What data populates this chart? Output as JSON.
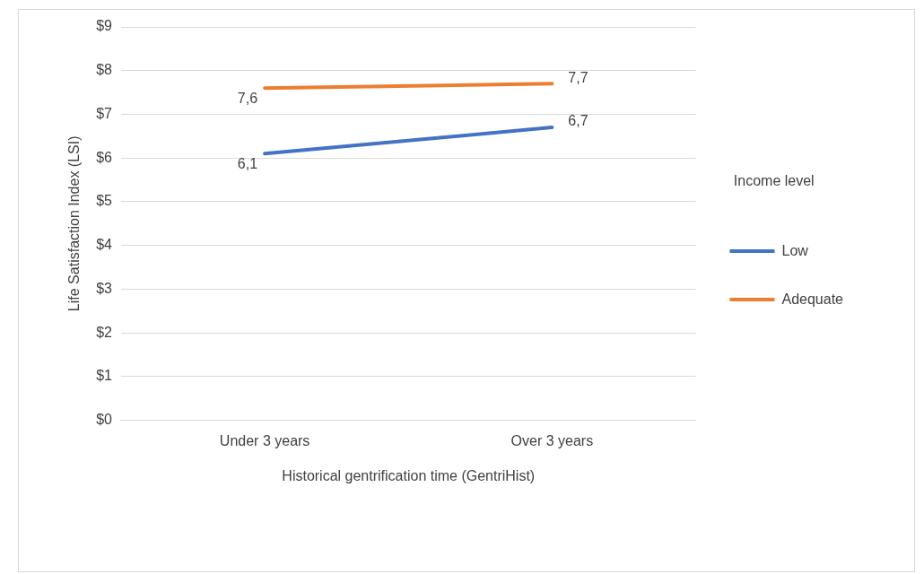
{
  "chart_data": {
    "type": "line",
    "xlabel": "Historical gentrification time (GentriHist)",
    "ylabel": "Life Satisfaction Index (LSI)",
    "legend_title": "Income level",
    "categories": [
      "Under 3 years",
      "Over 3 years"
    ],
    "series": [
      {
        "name": "Low",
        "color": "#4472c4",
        "values": [
          6.1,
          6.7
        ],
        "value_labels": [
          "6,1",
          "6,7"
        ]
      },
      {
        "name": "Adequate",
        "color": "#ed7d31",
        "values": [
          7.6,
          7.7
        ],
        "value_labels": [
          "7,6",
          "7,7"
        ]
      }
    ],
    "ylim": [
      0,
      9
    ],
    "yticks": [
      {
        "value": 0,
        "label": "$0"
      },
      {
        "value": 1,
        "label": "$1"
      },
      {
        "value": 2,
        "label": "$2"
      },
      {
        "value": 3,
        "label": "$3"
      },
      {
        "value": 4,
        "label": "$4"
      },
      {
        "value": 5,
        "label": "$5"
      },
      {
        "value": 6,
        "label": "$6"
      },
      {
        "value": 7,
        "label": "$7"
      },
      {
        "value": 8,
        "label": "$8"
      },
      {
        "value": 9,
        "label": "$9"
      }
    ],
    "grid": "y",
    "legend": "right",
    "marker": "none",
    "line_style": "solid"
  }
}
